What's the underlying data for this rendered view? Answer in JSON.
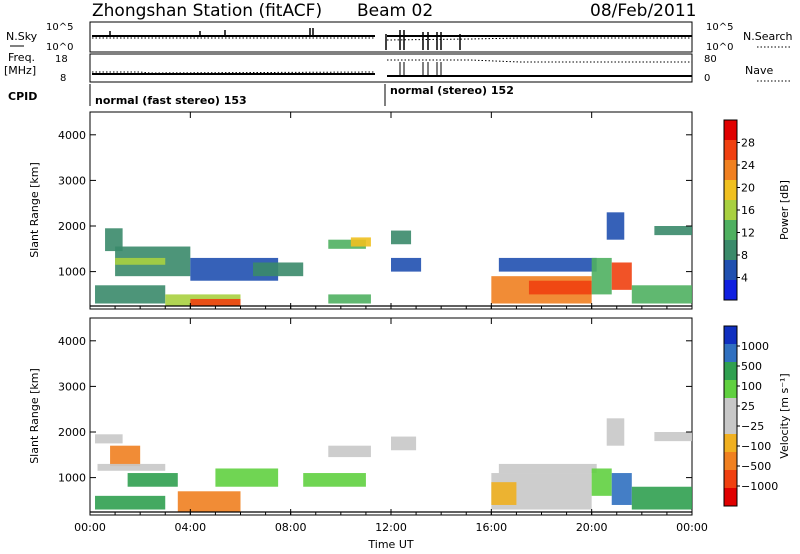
{
  "header": {
    "title": "Zhongshan Station (fitACF)",
    "beam": "Beam 02",
    "date": "08/Feb/2011"
  },
  "top_panels": {
    "nsky_label": "N.Sky",
    "nsky_ticks": [
      "10^5",
      "10^0"
    ],
    "nsearch_label": "N.Search",
    "nsearch_ticks": [
      "10^5",
      "10^0"
    ],
    "freq_label_1": "Freq.",
    "freq_label_2": "[MHz]",
    "freq_ticks": [
      "18",
      "8"
    ],
    "nave_label": "Nave",
    "nave_ticks": [
      "80",
      "0"
    ],
    "cpid_label": "CPID",
    "mode_1": "normal (fast stereo) 153",
    "mode_2": "normal (stereo) 152"
  },
  "colors": {
    "power_scale": [
      "#1020e0",
      "#2050b0",
      "#3a8a6a",
      "#4fb060",
      "#a8d040",
      "#f0c020",
      "#f08020",
      "#f04010",
      "#e00000"
    ],
    "velocity_scale": [
      "#e00000",
      "#f04010",
      "#f08020",
      "#f0b020",
      "#c8c8c8",
      "#c8c8c8",
      "#60d040",
      "#30a050",
      "#3070c0",
      "#1030c0"
    ]
  },
  "chart_data": [
    {
      "type": "heatmap",
      "name": "power",
      "ylabel": "Slant Range [km]",
      "colorbar_label": "Power [dB]",
      "colorbar_ticks": [
        "28",
        "24",
        "20",
        "16",
        "12",
        "8",
        "4"
      ],
      "clim": [
        0,
        32
      ],
      "ylim": [
        180,
        4500
      ],
      "y_ticks": [
        "4000",
        "3000",
        "2000",
        "1000"
      ],
      "x_ticks": [
        "00:00",
        "04:00",
        "08:00",
        "12:00",
        "16:00",
        "20:00",
        "00:00"
      ],
      "xlim_hours": [
        0,
        24
      ],
      "regions": [
        {
          "t0": 0.6,
          "t1": 1.3,
          "r0": 1450,
          "r1": 1950,
          "v": 8
        },
        {
          "t0": 1.0,
          "t1": 4.0,
          "r0": 900,
          "r1": 1550,
          "v": 10
        },
        {
          "t0": 1.0,
          "t1": 3.0,
          "r0": 1150,
          "r1": 1300,
          "v": 16
        },
        {
          "t0": 0.2,
          "t1": 3.0,
          "r0": 300,
          "r1": 700,
          "v": 8
        },
        {
          "t0": 3.0,
          "t1": 6.0,
          "r0": 250,
          "r1": 500,
          "v": 16
        },
        {
          "t0": 4.0,
          "t1": 6.0,
          "r0": 250,
          "r1": 400,
          "v": 26
        },
        {
          "t0": 4.0,
          "t1": 7.5,
          "r0": 800,
          "r1": 1300,
          "v": 6
        },
        {
          "t0": 6.5,
          "t1": 8.5,
          "r0": 900,
          "r1": 1200,
          "v": 8
        },
        {
          "t0": 9.5,
          "t1": 11.0,
          "r0": 1500,
          "r1": 1700,
          "v": 11
        },
        {
          "t0": 10.4,
          "t1": 11.2,
          "r0": 1550,
          "r1": 1750,
          "v": 18
        },
        {
          "t0": 9.5,
          "t1": 11.2,
          "r0": 300,
          "r1": 500,
          "v": 12
        },
        {
          "t0": 12.0,
          "t1": 12.8,
          "r0": 1600,
          "r1": 1900,
          "v": 8
        },
        {
          "t0": 12.0,
          "t1": 13.2,
          "r0": 1000,
          "r1": 1300,
          "v": 7
        },
        {
          "t0": 16.3,
          "t1": 20.2,
          "r0": 1000,
          "r1": 1300,
          "v": 7
        },
        {
          "t0": 16.0,
          "t1": 20.0,
          "r0": 300,
          "r1": 900,
          "v": 22
        },
        {
          "t0": 17.5,
          "t1": 20.0,
          "r0": 500,
          "r1": 800,
          "v": 26
        },
        {
          "t0": 20.0,
          "t1": 20.8,
          "r0": 500,
          "r1": 1300,
          "v": 14
        },
        {
          "t0": 20.8,
          "t1": 21.6,
          "r0": 600,
          "r1": 1200,
          "v": 26
        },
        {
          "t0": 21.6,
          "t1": 24.0,
          "r0": 300,
          "r1": 700,
          "v": 12
        },
        {
          "t0": 20.6,
          "t1": 21.3,
          "r0": 1700,
          "r1": 2300,
          "v": 7
        },
        {
          "t0": 22.5,
          "t1": 24.0,
          "r0": 1800,
          "r1": 2000,
          "v": 8
        }
      ]
    },
    {
      "type": "heatmap",
      "name": "velocity",
      "ylabel": "Slant Range [km]",
      "colorbar_label": "Velocity [m s⁻¹]",
      "colorbar_ticks": [
        "1000",
        "500",
        "100",
        "25",
        "−25",
        "−100",
        "−500",
        "−1000"
      ],
      "ylim": [
        180,
        4500
      ],
      "y_ticks": [
        "4000",
        "3000",
        "2000",
        "1000"
      ],
      "x_ticks": [
        "00:00",
        "04:00",
        "08:00",
        "12:00",
        "16:00",
        "20:00",
        "00:00"
      ],
      "xlabel": "Time UT",
      "xlim_hours": [
        0,
        24
      ],
      "regions": [
        {
          "t0": 0.2,
          "t1": 1.3,
          "r0": 1750,
          "r1": 1950,
          "v": 5
        },
        {
          "t0": 0.8,
          "t1": 2.0,
          "r0": 1250,
          "r1": 1700,
          "v": 2
        },
        {
          "t0": 0.3,
          "t1": 3.0,
          "r0": 1150,
          "r1": 1300,
          "v": 5
        },
        {
          "t0": 1.5,
          "t1": 3.5,
          "r0": 800,
          "r1": 1100,
          "v": 7
        },
        {
          "t0": 0.2,
          "t1": 3.0,
          "r0": 300,
          "r1": 600,
          "v": 7
        },
        {
          "t0": 3.5,
          "t1": 6.0,
          "r0": 250,
          "r1": 700,
          "v": 2
        },
        {
          "t0": 5.0,
          "t1": 7.5,
          "r0": 800,
          "r1": 1200,
          "v": 6
        },
        {
          "t0": 9.5,
          "t1": 11.2,
          "r0": 1450,
          "r1": 1700,
          "v": 5
        },
        {
          "t0": 8.5,
          "t1": 11.0,
          "r0": 800,
          "r1": 1100,
          "v": 6
        },
        {
          "t0": 12.0,
          "t1": 13.0,
          "r0": 1600,
          "r1": 1900,
          "v": 5
        },
        {
          "t0": 16.3,
          "t1": 20.2,
          "r0": 1100,
          "r1": 1300,
          "v": 5
        },
        {
          "t0": 16.0,
          "t1": 20.0,
          "r0": 300,
          "r1": 1100,
          "v": 5
        },
        {
          "t0": 16.0,
          "t1": 17.0,
          "r0": 400,
          "r1": 900,
          "v": 3
        },
        {
          "t0": 20.0,
          "t1": 20.8,
          "r0": 600,
          "r1": 1200,
          "v": 6
        },
        {
          "t0": 20.8,
          "t1": 21.6,
          "r0": 400,
          "r1": 1100,
          "v": 8
        },
        {
          "t0": 21.6,
          "t1": 24.0,
          "r0": 300,
          "r1": 800,
          "v": 7
        },
        {
          "t0": 20.6,
          "t1": 21.3,
          "r0": 1700,
          "r1": 2300,
          "v": 5
        },
        {
          "t0": 22.5,
          "t1": 24.0,
          "r0": 1800,
          "r1": 2000,
          "v": 5
        }
      ]
    }
  ]
}
